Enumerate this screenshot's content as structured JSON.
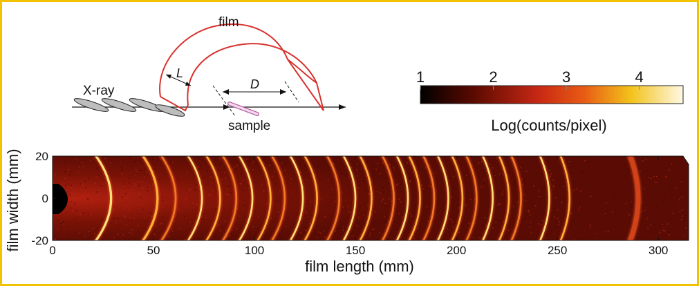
{
  "schematic": {
    "film_label": "film",
    "xray_label": "X-ray",
    "L_label": "L",
    "D_label": "D",
    "sample_label": "sample"
  },
  "colorbar": {
    "ticks": [
      "1",
      "2",
      "3",
      "4"
    ],
    "tick_values": [
      1,
      2,
      3,
      4
    ],
    "range": [
      1,
      4.6
    ],
    "label": "Log(counts/pixel)",
    "colors": [
      "#000000",
      "#5a0a00",
      "#c82814",
      "#e85a14",
      "#f2c21a",
      "#fff9e6"
    ]
  },
  "detector": {
    "xlabel": "film length (mm)",
    "ylabel": "film width (mm)",
    "x_ticks": [
      "0",
      "50",
      "100",
      "150",
      "200",
      "250",
      "300"
    ],
    "x_tick_values": [
      0,
      50,
      100,
      150,
      200,
      250,
      300
    ],
    "y_ticks": [
      "20",
      "0",
      "-20"
    ],
    "y_tick_values": [
      20,
      0,
      -20
    ],
    "xlim": [
      0,
      315
    ],
    "ylim": [
      -20,
      20
    ],
    "rings_mm": [
      29,
      52,
      61,
      74,
      83,
      91,
      99,
      108,
      115,
      124,
      131,
      142,
      150,
      158,
      169,
      176,
      182,
      189,
      196,
      203,
      210,
      218,
      226,
      232,
      246,
      256,
      290
    ]
  },
  "chart_data": {
    "type": "heatmap",
    "title": "",
    "xlabel": "film length (mm)",
    "ylabel": "film width (mm)",
    "xlim": [
      0,
      315
    ],
    "ylim": [
      -20,
      20
    ],
    "colorbar_label": "Log(counts/pixel)",
    "colorbar_range": [
      1,
      4.6
    ],
    "diffraction_ring_positions_mm": [
      29,
      52,
      61,
      74,
      83,
      91,
      99,
      108,
      115,
      124,
      131,
      142,
      150,
      158,
      169,
      176,
      182,
      189,
      196,
      203,
      210,
      218,
      226,
      232,
      246,
      256,
      290
    ]
  }
}
